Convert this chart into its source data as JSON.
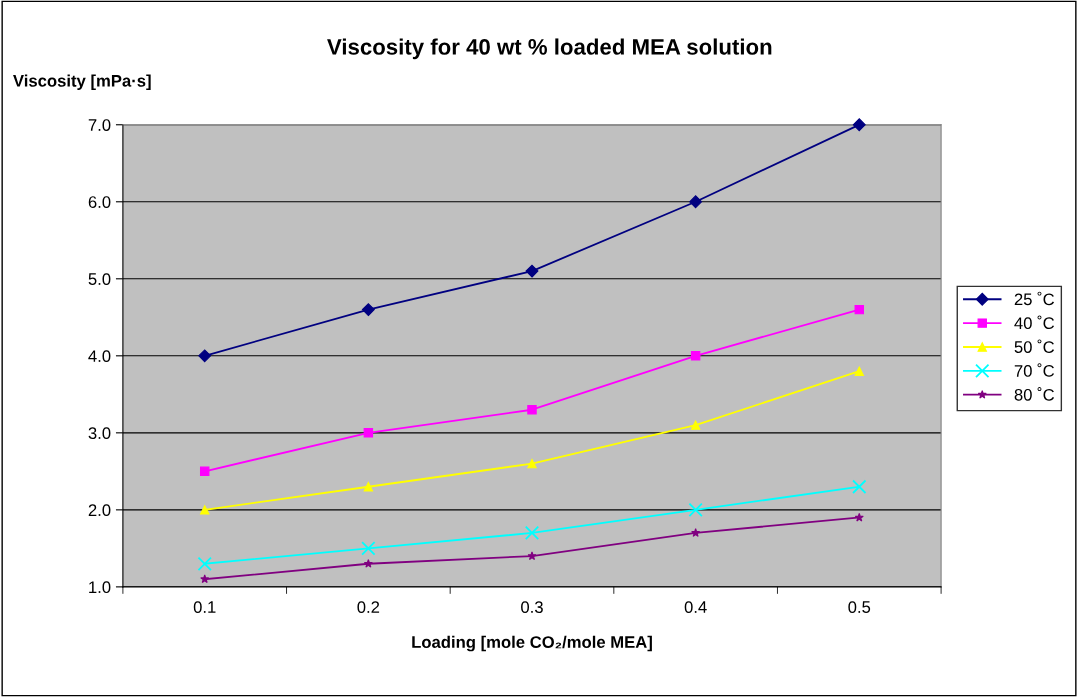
{
  "chart_data": {
    "type": "line",
    "title": "Viscosity for 40 wt % loaded MEA solution",
    "ylabel": "Viscosity [mPa·s]",
    "xlabel": "Loading [mole CO₂/mole MEA]",
    "categories": [
      "0.1",
      "0.2",
      "0.3",
      "0.4",
      "0.5"
    ],
    "series": [
      {
        "name": "25 ˚C",
        "color": "#000080",
        "marker": "diamond",
        "values": [
          4.0,
          4.6,
          5.1,
          6.0,
          7.0
        ]
      },
      {
        "name": "40 ˚C",
        "color": "#ff00ff",
        "marker": "square",
        "values": [
          2.5,
          3.0,
          3.3,
          4.0,
          4.6
        ]
      },
      {
        "name": "50 ˚C",
        "color": "#ffff00",
        "marker": "triangle",
        "values": [
          2.0,
          2.3,
          2.6,
          3.1,
          3.8
        ]
      },
      {
        "name": "70 ˚C",
        "color": "#00ffff",
        "marker": "cross",
        "values": [
          1.3,
          1.5,
          1.7,
          2.0,
          2.3
        ]
      },
      {
        "name": "80 ˚C",
        "color": "#800080",
        "marker": "star",
        "values": [
          1.1,
          1.3,
          1.4,
          1.7,
          1.9
        ]
      }
    ],
    "ylim": [
      1,
      7
    ],
    "yticks": [
      {
        "value": 1,
        "label": "1.0"
      },
      {
        "value": 2,
        "label": "2.0"
      },
      {
        "value": 3,
        "label": "3.0"
      },
      {
        "value": 4,
        "label": "4.0"
      },
      {
        "value": 5,
        "label": "5.0"
      },
      {
        "value": 6,
        "label": "6.0"
      },
      {
        "value": 7,
        "label": "7.0"
      }
    ],
    "grid": "y",
    "legend": "right",
    "line_style": "solid"
  }
}
